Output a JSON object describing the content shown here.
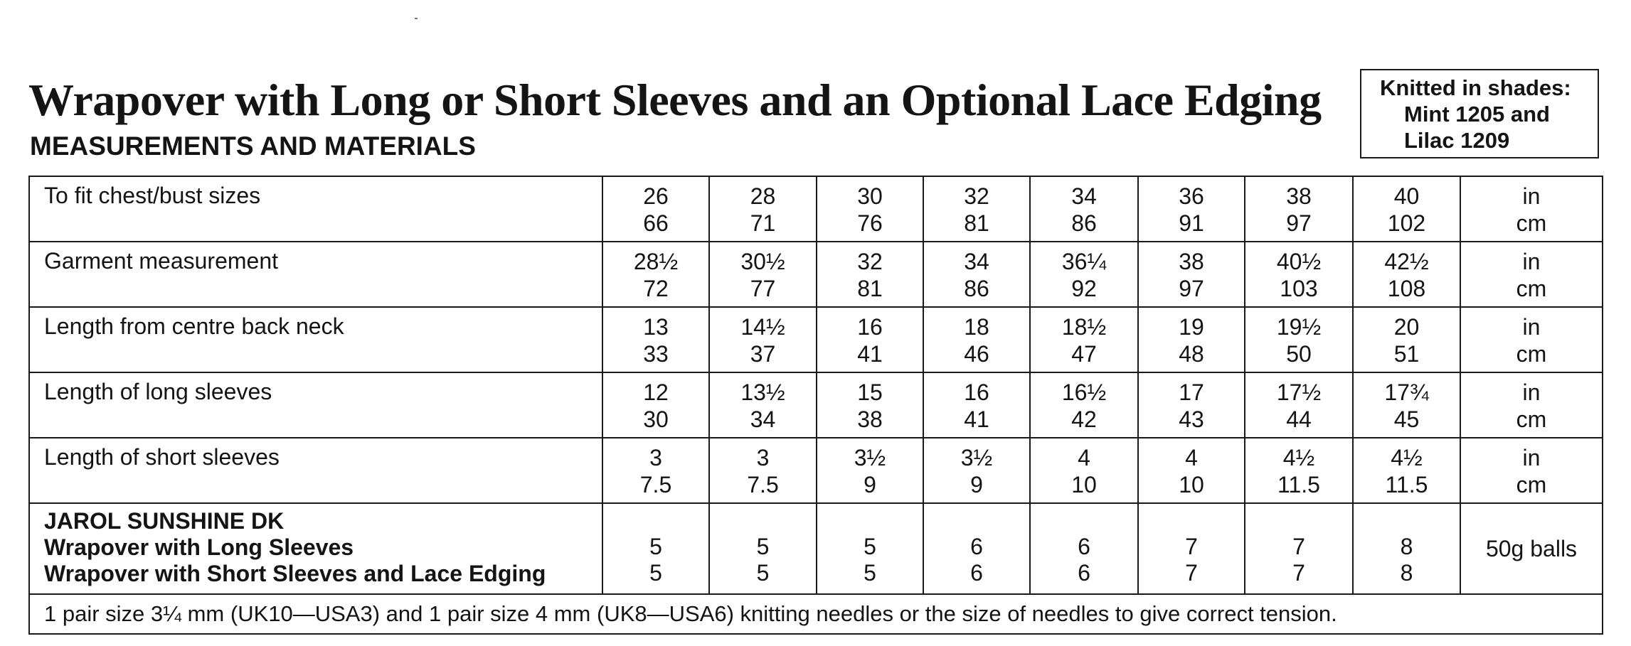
{
  "title": "Wrapover with Long or Short Sleeves and an Optional Lace Edging",
  "subtitle": "MEASUREMENTS AND MATERIALS",
  "shades": {
    "line1": "Knitted in shades:",
    "line2": "Mint 1205 and",
    "line3": "Lilac 1209"
  },
  "rows": [
    {
      "label": "To fit chest/bust sizes",
      "in": [
        "26",
        "28",
        "30",
        "32",
        "34",
        "36",
        "38",
        "40"
      ],
      "cm": [
        "66",
        "71",
        "76",
        "81",
        "86",
        "91",
        "97",
        "102"
      ],
      "unit_in": "in",
      "unit_cm": "cm"
    },
    {
      "label": "Garment measurement",
      "in": [
        "28½",
        "30½",
        "32",
        "34",
        "36¼",
        "38",
        "40½",
        "42½"
      ],
      "cm": [
        "72",
        "77",
        "81",
        "86",
        "92",
        "97",
        "103",
        "108"
      ],
      "unit_in": "in",
      "unit_cm": "cm"
    },
    {
      "label": "Length from centre back neck",
      "in": [
        "13",
        "14½",
        "16",
        "18",
        "18½",
        "19",
        "19½",
        "20"
      ],
      "cm": [
        "33",
        "37",
        "41",
        "46",
        "47",
        "48",
        "50",
        "51"
      ],
      "unit_in": "in",
      "unit_cm": "cm"
    },
    {
      "label": "Length of long sleeves",
      "in": [
        "12",
        "13½",
        "15",
        "16",
        "16½",
        "17",
        "17½",
        "17¾"
      ],
      "cm": [
        "30",
        "34",
        "38",
        "41",
        "42",
        "43",
        "44",
        "45"
      ],
      "unit_in": "in",
      "unit_cm": "cm"
    },
    {
      "label": "Length of short sleeves",
      "in": [
        "3",
        "3",
        "3½",
        "3½",
        "4",
        "4",
        "4½",
        "4½"
      ],
      "cm": [
        "7.5",
        "7.5",
        "9",
        "9",
        "10",
        "10",
        "11.5",
        "11.5"
      ],
      "unit_in": "in",
      "unit_cm": "cm"
    }
  ],
  "yarn": {
    "heading": "JAROL SUNSHINE DK",
    "long_label": "Wrapover with Long Sleeves",
    "short_label": "Wrapover with Short Sleeves and Lace Edging",
    "long": [
      "5",
      "5",
      "5",
      "6",
      "6",
      "7",
      "7",
      "8"
    ],
    "short": [
      "5",
      "5",
      "5",
      "6",
      "6",
      "7",
      "7",
      "8"
    ],
    "unit": "50g balls"
  },
  "needles": "1 pair size 3¼ mm (UK10—USA3) and 1 pair size 4 mm (UK8—USA6) knitting needles or the size of needles to give correct tension."
}
